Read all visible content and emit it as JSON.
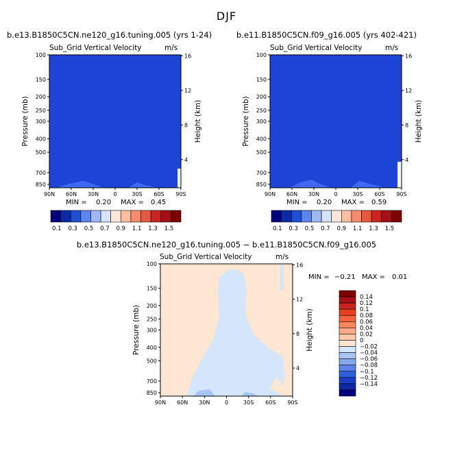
{
  "figure": {
    "title": "DJF"
  },
  "colors": {
    "blue_base": "#1e44d6",
    "blue_bump": "#3d6af0",
    "diff_pos": "#fde6d2",
    "diff_neg": "#d3e6fb",
    "diff_neg2": "#a9c6f2"
  },
  "chart_data": [
    {
      "type": "heatmap",
      "title": "b.e13.B1850C5CN.ne120_g16.tuning.005 (yrs 1-24)",
      "subtitle": "Sub_Grid Vertical Velocity",
      "units": "m/s",
      "xlabel": "",
      "ylabel": "Pressure (mb)",
      "ylabel_right": "Height (km)",
      "x_ticks": [
        "90N",
        "60N",
        "30N",
        "0",
        "30S",
        "60S",
        "90S"
      ],
      "y_ticks": [
        "100",
        "150",
        "200",
        "250",
        "300",
        "400",
        "500",
        "700",
        "850"
      ],
      "y_ticks_right": [
        "16",
        "12",
        "8",
        "4"
      ],
      "min_label": "MIN =",
      "min": "0.20",
      "max_label": "MAX =",
      "max": "0.45",
      "colorbar_labels": [
        "0.1",
        "0.3",
        "0.5",
        "0.7",
        "0.9",
        "1.1",
        "1.3",
        "1.5"
      ],
      "colorbar_colors": [
        "#00007c",
        "#0a2aa6",
        "#1e4fd2",
        "#5b84ec",
        "#9db8f5",
        "#d6e3fb",
        "#fde7d9",
        "#fcbfa3",
        "#f68a6c",
        "#e85840",
        "#c9241f",
        "#a50f15",
        "#7d0000"
      ],
      "field_note": "0.2"
    },
    {
      "type": "heatmap",
      "title": "b.e11.B1850C5CN.f09_g16.005 (yrs 402-421)",
      "subtitle": "Sub_Grid Vertical Velocity",
      "units": "m/s",
      "xlabel": "",
      "ylabel": "Pressure (mb)",
      "ylabel_right": "Height (km)",
      "x_ticks": [
        "90N",
        "60N",
        "30N",
        "0",
        "30S",
        "60S",
        "90S"
      ],
      "y_ticks": [
        "100",
        "150",
        "200",
        "250",
        "300",
        "400",
        "500",
        "700",
        "850"
      ],
      "y_ticks_right": [
        "16",
        "12",
        "8",
        "4"
      ],
      "min_label": "MIN =",
      "min": "0.20",
      "max_label": "MAX =",
      "max": "0.59",
      "colorbar_labels": [
        "0.1",
        "0.3",
        "0.5",
        "0.7",
        "0.9",
        "1.1",
        "1.3",
        "1.5"
      ],
      "colorbar_colors": [
        "#00007c",
        "#0a2aa6",
        "#1e4fd2",
        "#5b84ec",
        "#9db8f5",
        "#d6e3fb",
        "#fde7d9",
        "#fcbfa3",
        "#f68a6c",
        "#e85840",
        "#c9241f",
        "#a50f15",
        "#7d0000"
      ]
    },
    {
      "type": "heatmap",
      "title": "b.e13.B1850C5CN.ne120_g16.tuning.005 − b.e11.B1850C5CN.f09_g16.005",
      "subtitle": "Sub_Grid Vertical Velocity",
      "units": "m/s",
      "xlabel": "",
      "ylabel": "Pressure (mb)",
      "ylabel_right": "Height (km)",
      "x_ticks": [
        "90N",
        "60N",
        "30N",
        "0",
        "30S",
        "60S",
        "90S"
      ],
      "y_ticks": [
        "100",
        "150",
        "200",
        "250",
        "300",
        "400",
        "500",
        "700",
        "850"
      ],
      "y_ticks_right": [
        "16",
        "12",
        "8",
        "4"
      ],
      "min_label": "MIN =",
      "min": "−0.21",
      "max_label": "MAX =",
      "max": "0.01",
      "colorbar_labels": [
        "0.14",
        "0.12",
        "0.1",
        "0.08",
        "0.06",
        "0.04",
        "0.02",
        "0",
        "−0.02",
        "−0.04",
        "−0.06",
        "−0.08",
        "−0.1",
        "−0.12",
        "−0.14"
      ],
      "colorbar_colors": [
        "#7d0000",
        "#a50f15",
        "#c9241f",
        "#e8401f",
        "#f4633b",
        "#f8855c",
        "#fba986",
        "#fcc9aa",
        "#fde6d2",
        "#d3e6fb",
        "#a9c6f2",
        "#86a9ec",
        "#5b84ec",
        "#2f5de0",
        "#1a3cc8",
        "#0f28a6",
        "#00007c"
      ]
    }
  ]
}
